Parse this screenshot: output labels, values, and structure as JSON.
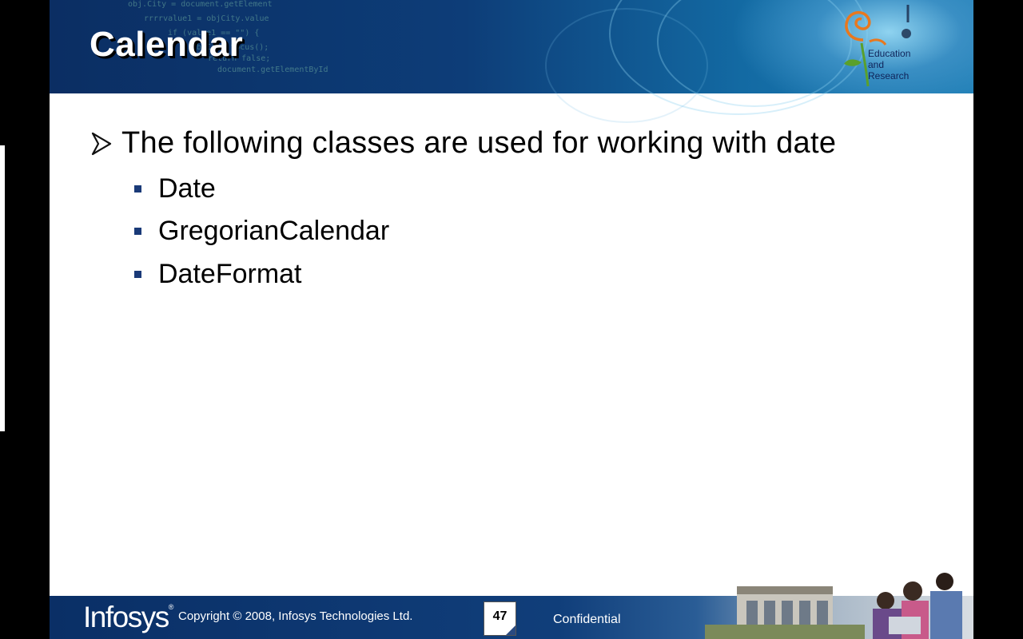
{
  "slide": {
    "title": "Calendar",
    "main_bullet": "The following classes are used for working with date",
    "sub_bullets": [
      "Date",
      "GregorianCalendar",
      "DateFormat"
    ]
  },
  "header_logo": {
    "line1": "Education",
    "line2": "and",
    "line3": "Research"
  },
  "footer": {
    "brand": "Infosys",
    "brand_mark": "®",
    "copyright": "Copyright © 2008, Infosys  Technologies  Ltd.",
    "page_number": "47",
    "confidential": "Confidential"
  },
  "colors": {
    "header_dark": "#0b2e63",
    "bullet_square": "#1a3a78",
    "logo_orange": "#e8781e",
    "logo_green": "#5aa02c"
  },
  "icons": {
    "main_bullet": "arrow-bullet-icon",
    "sub_bullet": "square-bullet-icon"
  }
}
